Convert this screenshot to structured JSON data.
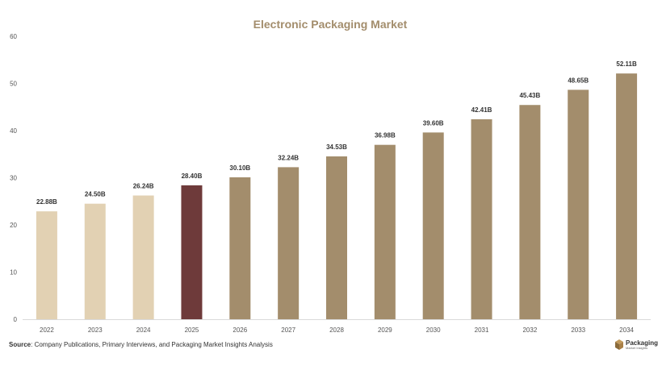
{
  "chart_data": {
    "type": "bar",
    "title": "Electronic Packaging Market",
    "categories": [
      "2022",
      "2023",
      "2024",
      "2025",
      "2026",
      "2027",
      "2028",
      "2029",
      "2030",
      "2031",
      "2032",
      "2033",
      "2034"
    ],
    "values": [
      22.88,
      24.5,
      26.24,
      28.4,
      30.1,
      32.24,
      34.53,
      36.98,
      39.6,
      42.41,
      45.43,
      48.65,
      52.11
    ],
    "data_labels": [
      "22.88B",
      "24.50B",
      "26.24B",
      "28.40B",
      "30.10B",
      "32.24B",
      "34.53B",
      "36.98B",
      "39.60B",
      "42.41B",
      "45.43B",
      "48.65B",
      "52.11B"
    ],
    "yticks": [
      "0",
      "10",
      "20",
      "30",
      "40",
      "50",
      "60"
    ],
    "ylim": [
      0,
      60
    ],
    "xlabel": "",
    "ylabel": "",
    "grid": false,
    "colors": {
      "historical": "#e2d1b3",
      "current": "#6e3a3a",
      "forecast": "#a38d6c",
      "title": "#a38d6c"
    },
    "bar_color_groups": [
      "historical",
      "historical",
      "historical",
      "current",
      "forecast",
      "forecast",
      "forecast",
      "forecast",
      "forecast",
      "forecast",
      "forecast",
      "forecast",
      "forecast"
    ]
  },
  "footer": {
    "source_label": "Source",
    "source_text": ": Company Publications, Primary Interviews, and Packaging Market Insights Analysis"
  },
  "logo": {
    "main": "Packaging",
    "sub": "Market Insights",
    "icon": "packaging-box-icon"
  }
}
